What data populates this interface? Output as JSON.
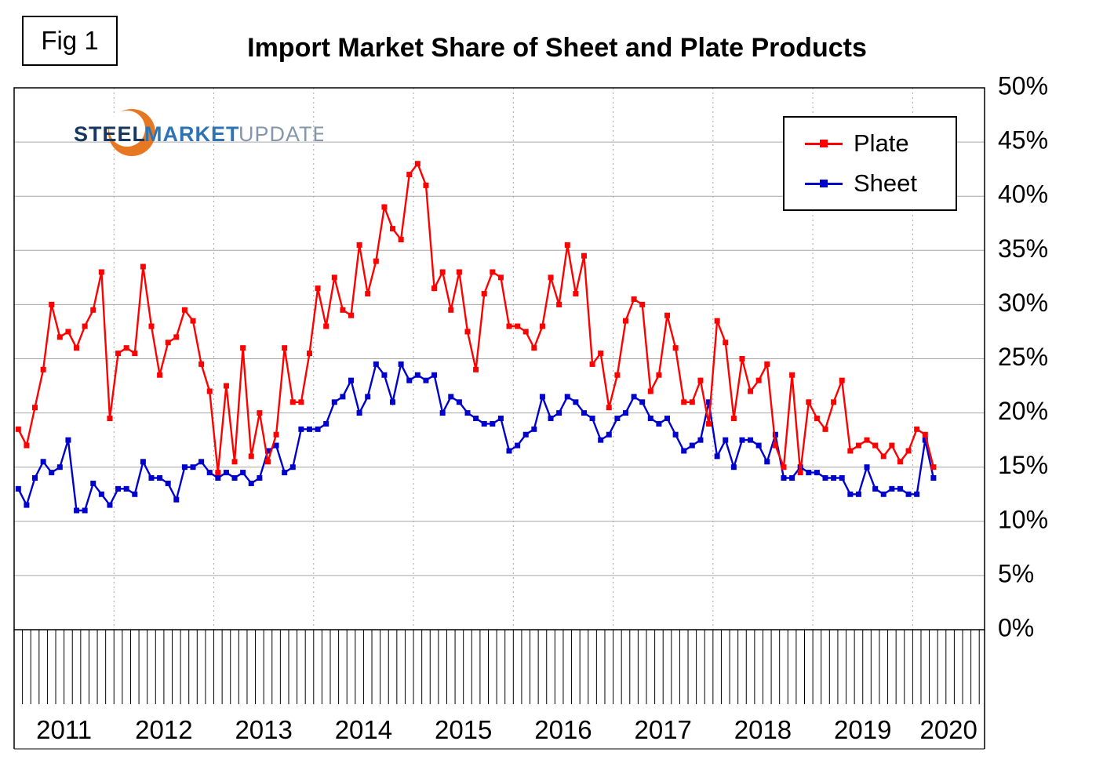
{
  "fig_label": "Fig 1",
  "title": "Import Market Share of Sheet and Plate Products",
  "logo": {
    "steel": "STEEL",
    "market": "MARKET",
    "update": "UPDATE"
  },
  "legend": {
    "items": [
      {
        "label": "Plate",
        "color": "#FF0000"
      },
      {
        "label": "Sheet",
        "color": "#0000CD"
      }
    ]
  },
  "chart_data": {
    "type": "line",
    "title": "Import Market Share of Sheet and Plate Products",
    "x_start": "2011-01",
    "x_frequency": "monthly",
    "year_labels": [
      "2011",
      "2012",
      "2013",
      "2014",
      "2015",
      "2016",
      "2017",
      "2018",
      "2019",
      "2020"
    ],
    "ylim": [
      0,
      50
    ],
    "ytick_step": 5,
    "ytick_labels": [
      "0%",
      "5%",
      "10%",
      "15%",
      "20%",
      "25%",
      "30%",
      "35%",
      "40%",
      "45%",
      "50%"
    ],
    "grid": {
      "horizontal": "solid",
      "vertical": "dotted-yearly"
    },
    "legend_position": "top-right",
    "units": "percent",
    "series": [
      {
        "name": "Plate",
        "color": "#FF0000",
        "marker": "square",
        "values": [
          18.5,
          17,
          20.5,
          24,
          30,
          27,
          27.5,
          26,
          28,
          29.5,
          33,
          19.5,
          25.5,
          26,
          25.5,
          33.5,
          28,
          23.5,
          26.5,
          27,
          29.5,
          28.5,
          24.5,
          22,
          14.5,
          22.5,
          15.5,
          26,
          16,
          20,
          15.5,
          18,
          26,
          21,
          21,
          25.5,
          31.5,
          28,
          32.5,
          29.5,
          29,
          35.5,
          31,
          34,
          39,
          37,
          36,
          42,
          43,
          41,
          31.5,
          33,
          29.5,
          33,
          27.5,
          24,
          31,
          33,
          32.5,
          28,
          28,
          27.5,
          26,
          28,
          32.5,
          30,
          35.5,
          31,
          34.5,
          24.5,
          25.5,
          20.5,
          23.5,
          28.5,
          30.5,
          30,
          22,
          23.5,
          29,
          26,
          21,
          21,
          23,
          19,
          28.5,
          26.5,
          19.5,
          25,
          22,
          23,
          24.5,
          17,
          15,
          23.5,
          14.5,
          21,
          19.5,
          18.5,
          21,
          23,
          16.5,
          17,
          17.5,
          17,
          16,
          17,
          15.5,
          16.5,
          18.5,
          18,
          15
        ]
      },
      {
        "name": "Sheet",
        "color": "#0000CD",
        "marker": "square",
        "values": [
          13,
          11.5,
          14,
          15.5,
          14.5,
          15,
          17.5,
          11,
          11,
          13.5,
          12.5,
          11.5,
          13,
          13,
          12.5,
          15.5,
          14,
          14,
          13.5,
          12,
          15,
          15,
          15.5,
          14.5,
          14,
          14.5,
          14,
          14.5,
          13.5,
          14,
          16.5,
          17,
          14.5,
          15,
          18.5,
          18.5,
          18.5,
          19,
          21,
          21.5,
          23,
          20,
          21.5,
          24.5,
          23.5,
          21,
          24.5,
          23,
          23.5,
          23,
          23.5,
          20,
          21.5,
          21,
          20,
          19.5,
          19,
          19,
          19.5,
          16.5,
          17,
          18,
          18.5,
          21.5,
          19.5,
          20,
          21.5,
          21,
          20,
          19.5,
          17.5,
          18,
          19.5,
          20,
          21.5,
          21,
          19.5,
          19,
          19.5,
          18,
          16.5,
          17,
          17.5,
          21,
          16,
          17.5,
          15,
          17.5,
          17.5,
          17,
          15.5,
          18,
          14,
          14,
          15,
          14.5,
          14.5,
          14,
          14,
          14,
          12.5,
          12.5,
          15,
          13,
          12.5,
          13,
          13,
          12.5,
          12.5,
          17.5,
          14
        ]
      }
    ]
  }
}
